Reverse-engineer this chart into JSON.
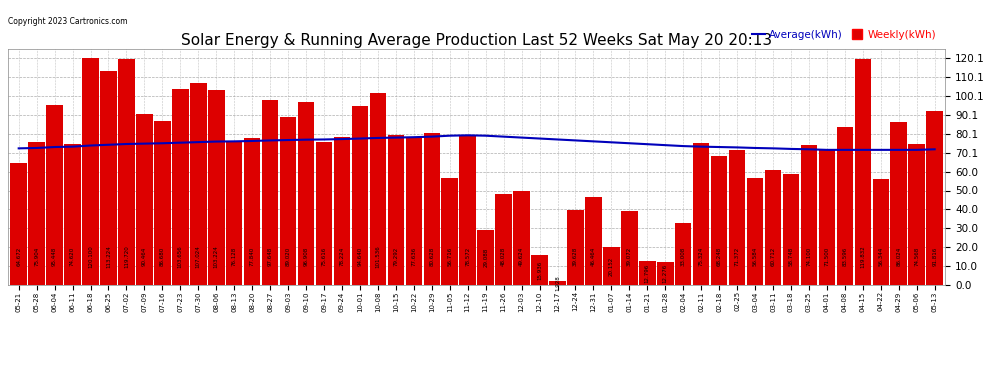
{
  "title": "Solar Energy & Running Average Production Last 52 Weeks Sat May 20 20:13",
  "copyright": "Copyright 2023 Cartronics.com",
  "legend_avg": "Average(kWh)",
  "legend_weekly": "Weekly(kWh)",
  "labels": [
    "05-21",
    "05-28",
    "06-04",
    "06-11",
    "06-18",
    "06-25",
    "07-02",
    "07-09",
    "07-16",
    "07-23",
    "07-30",
    "08-06",
    "08-13",
    "08-20",
    "08-27",
    "09-03",
    "09-10",
    "09-17",
    "09-24",
    "10-01",
    "10-08",
    "10-15",
    "10-22",
    "10-29",
    "11-05",
    "11-12",
    "11-19",
    "11-26",
    "12-03",
    "12-10",
    "12-17",
    "12-24",
    "12-31",
    "01-07",
    "01-14",
    "01-21",
    "01-28",
    "02-04",
    "02-11",
    "02-18",
    "02-25",
    "03-04",
    "03-11",
    "03-18",
    "03-25",
    "04-01",
    "04-08",
    "04-15",
    "04-22",
    "04-29",
    "05-06",
    "05-13"
  ],
  "weekly": [
    64.672,
    75.904,
    95.448,
    74.62,
    120.1,
    113.224,
    119.72,
    90.464,
    86.68,
    103.656,
    107.024,
    103.224,
    76.128,
    77.84,
    97.648,
    89.02,
    96.908,
    75.616,
    78.224,
    94.64,
    101.536,
    79.292,
    77.636,
    80.628,
    56.716,
    78.572,
    29.088,
    48.028,
    49.624,
    15.936,
    1.928,
    39.628,
    46.464,
    20.152,
    39.072,
    12.796,
    12.276,
    33.008,
    75.324,
    68.248,
    71.372,
    56.584,
    60.712,
    58.748,
    74.1,
    71.5,
    83.596,
    119.832,
    56.344,
    86.024,
    74.568,
    91.816
  ],
  "average": [
    72.3,
    72.5,
    73.0,
    73.2,
    73.8,
    74.2,
    74.6,
    74.8,
    75.0,
    75.3,
    75.6,
    75.9,
    76.0,
    76.2,
    76.5,
    76.7,
    76.9,
    77.0,
    77.2,
    77.5,
    77.8,
    78.0,
    78.2,
    78.5,
    79.0,
    79.2,
    79.0,
    78.5,
    78.0,
    77.5,
    77.0,
    76.5,
    76.0,
    75.5,
    75.0,
    74.5,
    74.0,
    73.5,
    73.2,
    73.0,
    72.8,
    72.5,
    72.3,
    72.0,
    71.8,
    71.5,
    71.5,
    71.5,
    71.5,
    71.5,
    71.5,
    71.8
  ],
  "bar_color": "#dd0000",
  "line_color": "#0000bb",
  "background_color": "#ffffff",
  "grid_color": "#999999",
  "title_fontsize": 11,
  "yticks": [
    0.0,
    10.0,
    20.0,
    30.0,
    40.0,
    50.0,
    60.0,
    70.1,
    80.1,
    90.1,
    100.1,
    110.1,
    120.1
  ],
  "ylim": [
    0,
    125
  ]
}
